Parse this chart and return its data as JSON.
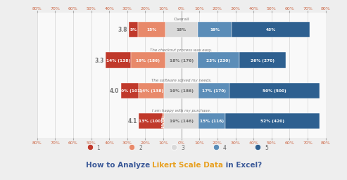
{
  "rows": [
    {
      "label": "Overall",
      "score": "3.8",
      "is_top": true,
      "segments": [
        {
          "pct": 5,
          "color": "#c0392b",
          "text": "5%"
        },
        {
          "pct": 15,
          "color": "#e8896a",
          "text": "15%"
        },
        {
          "pct": 18,
          "color": "#d9d9d9",
          "text": "18%"
        },
        {
          "pct": 19,
          "color": "#5b8db8",
          "text": "19%"
        },
        {
          "pct": 43,
          "color": "#2e6090",
          "text": "43%"
        }
      ]
    },
    {
      "label": "The checkout process was easy.",
      "score": "3.3",
      "is_top": false,
      "segments": [
        {
          "pct": 14,
          "color": "#c0392b",
          "text": "14% (138)"
        },
        {
          "pct": 19,
          "color": "#e8896a",
          "text": "19% (186)"
        },
        {
          "pct": 18,
          "color": "#d9d9d9",
          "text": "18% (176)"
        },
        {
          "pct": 23,
          "color": "#5b8db8",
          "text": "23% (230)"
        },
        {
          "pct": 26,
          "color": "#2e6090",
          "text": "26% (270)"
        }
      ]
    },
    {
      "label": "The software solved my needs.",
      "score": "4.0",
      "is_top": false,
      "segments": [
        {
          "pct": 10,
          "color": "#c0392b",
          "text": "10% (101)"
        },
        {
          "pct": 14,
          "color": "#e8896a",
          "text": "14% (138)"
        },
        {
          "pct": 19,
          "color": "#d9d9d9",
          "text": "19% (186)"
        },
        {
          "pct": 17,
          "color": "#5b8db8",
          "text": "17% (170)"
        },
        {
          "pct": 50,
          "color": "#2e6090",
          "text": "50% (500)"
        }
      ]
    },
    {
      "label": "I am happy with my purchase.",
      "score": "4.1",
      "is_top": false,
      "segments": [
        {
          "pct": 13,
          "color": "#c0392b",
          "text": "13% (100)"
        },
        {
          "pct": 1,
          "color": "#e8896a",
          "text": "1% (5)"
        },
        {
          "pct": 19,
          "color": "#d9d9d9",
          "text": "19% (146)"
        },
        {
          "pct": 15,
          "color": "#5b8db8",
          "text": "15% (116)"
        },
        {
          "pct": 52,
          "color": "#2e6090",
          "text": "52% (420)"
        }
      ]
    }
  ],
  "xlim": [
    -80,
    80
  ],
  "xticks": [
    -80,
    -70,
    -60,
    -50,
    -40,
    -30,
    -20,
    -10,
    0,
    10,
    20,
    30,
    40,
    50,
    60,
    70,
    80
  ],
  "xlabel_pcts": [
    "80%",
    "70%",
    "60%",
    "50%",
    "40%",
    "30%",
    "20%",
    "10%",
    "0%",
    "10%",
    "20%",
    "30%",
    "40%",
    "50%",
    "60%",
    "70%",
    "80%"
  ],
  "grid_color": "#cccccc",
  "bg_color": "#eeeeee",
  "panel_bg": "#f9f9f9",
  "title_parts": [
    {
      "text": "How to Analyze ",
      "color": "#3b5998"
    },
    {
      "text": "Likert Scale Data",
      "color": "#e8a020"
    },
    {
      "text": " in Excel?",
      "color": "#3b5998"
    }
  ],
  "legend_labels": [
    "1",
    "2",
    "3",
    "4",
    "5"
  ],
  "legend_colors": [
    "#c0392b",
    "#e8896a",
    "#d9d9d9",
    "#5b8db8",
    "#2e6090"
  ],
  "score_color": "#777777",
  "label_color": "#777777",
  "tick_color": "#cc6644"
}
